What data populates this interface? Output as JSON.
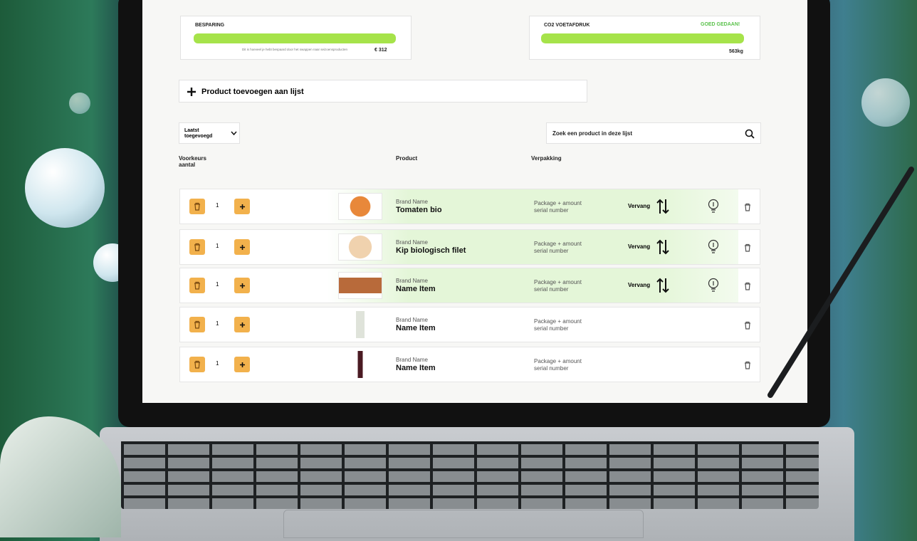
{
  "cards": [
    {
      "title": "BESPARING",
      "note": "Dit is hoeveel je hebt bespaard door het swappen naar seizoensproducten",
      "amount": "€ 312"
    },
    {
      "title": "CO2 VOETAFDRUK",
      "badge": "GOED GEDAAN!",
      "amount": "563kg"
    }
  ],
  "add_button": "Product toevoegen aan lijst",
  "sort": "Laatst toegevoegd",
  "search": "Zoek een product in deze lijst",
  "columns": [
    "Voorkeurs aantal",
    "Product",
    "Verpakking"
  ],
  "swap_label": "Vervang",
  "rows": [
    {
      "qty": "1",
      "brand": "Brand Name",
      "name": "Tomaten bio",
      "package": "Package + amount",
      "serial": "serial number",
      "swap": true
    },
    {
      "qty": "1",
      "brand": "Brand Name",
      "name": "Kip biologisch filet",
      "package": "Package + amount",
      "serial": "serial number",
      "swap": true
    },
    {
      "qty": "1",
      "brand": "Brand Name",
      "name": "Name Item",
      "package": "Package + amount",
      "serial": "serial number",
      "swap": true
    },
    {
      "qty": "1",
      "brand": "Brand Name",
      "name": "Name Item",
      "package": "Package + amount",
      "serial": "serial number",
      "swap": false
    },
    {
      "qty": "1",
      "brand": "Brand Name",
      "name": "Name Item",
      "package": "Package + amount",
      "serial": "serial number",
      "swap": false
    }
  ]
}
